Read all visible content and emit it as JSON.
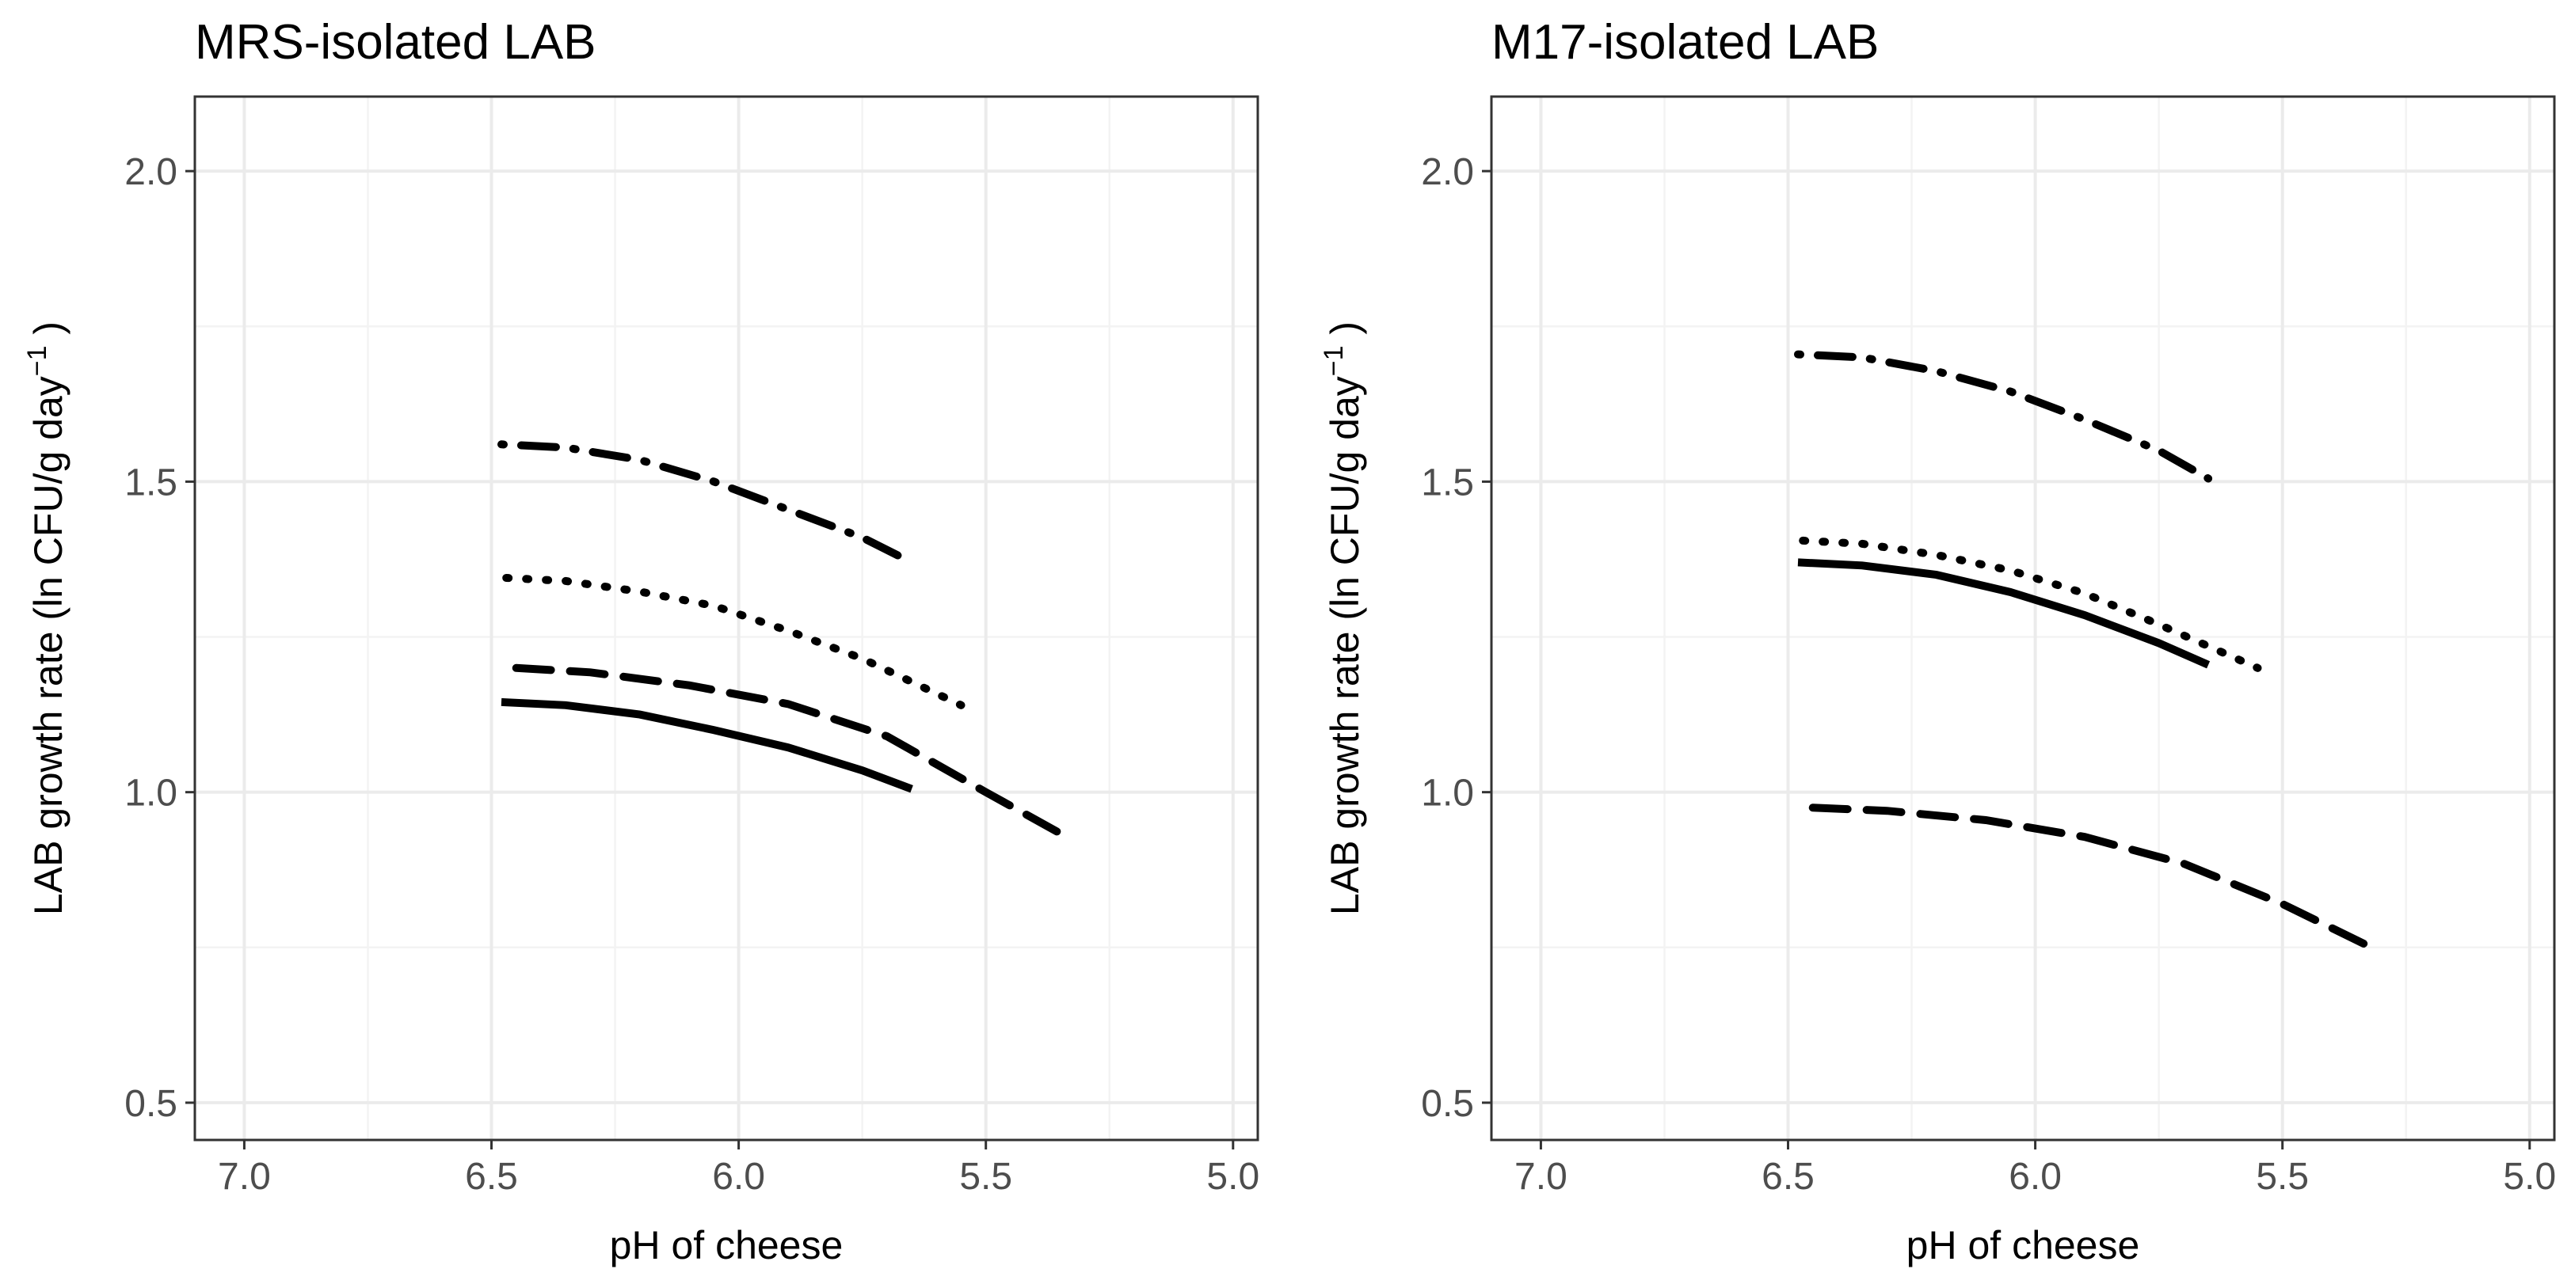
{
  "chart_data": [
    {
      "type": "line",
      "title": "MRS-isolated LAB",
      "xlabel": "pH of cheese",
      "ylabel_main": "LAB growth rate (ln CFU/g  day",
      "ylabel_sup": "−1",
      "ylabel_close": " )",
      "xlim": [
        7.1,
        4.95
      ],
      "ylim": [
        0.44,
        2.12
      ],
      "x_ticks": [
        7.0,
        6.5,
        6.0,
        5.5,
        5.0
      ],
      "x_tick_labels": [
        "7.0",
        "6.5",
        "6.0",
        "5.5",
        "5.0"
      ],
      "y_ticks": [
        0.5,
        1.0,
        1.5,
        2.0
      ],
      "y_tick_labels": [
        "0.5",
        "1.0",
        "1.5",
        "2.0"
      ],
      "grid": true,
      "series": [
        {
          "name": "solid",
          "linestyle": "solid",
          "x": [
            6.48,
            6.35,
            6.2,
            6.05,
            5.9,
            5.75,
            5.65
          ],
          "y": [
            1.145,
            1.14,
            1.125,
            1.1,
            1.072,
            1.035,
            1.005
          ]
        },
        {
          "name": "dashed",
          "linestyle": "dashed",
          "x": [
            6.45,
            6.3,
            6.1,
            5.9,
            5.7,
            5.5,
            5.33
          ],
          "y": [
            1.2,
            1.193,
            1.172,
            1.142,
            1.09,
            1.0,
            0.925
          ]
        },
        {
          "name": "dotted",
          "linestyle": "dotted",
          "x": [
            6.47,
            6.35,
            6.2,
            6.05,
            5.9,
            5.75,
            5.55
          ],
          "y": [
            1.345,
            1.34,
            1.323,
            1.3,
            1.26,
            1.215,
            1.14
          ]
        },
        {
          "name": "dotdash",
          "linestyle": "dotdash",
          "x": [
            6.48,
            6.35,
            6.2,
            6.05,
            5.9,
            5.75,
            5.65
          ],
          "y": [
            1.56,
            1.555,
            1.535,
            1.5,
            1.455,
            1.41,
            1.37
          ]
        }
      ]
    },
    {
      "type": "line",
      "title": "M17-isolated LAB",
      "xlabel": "pH of cheese",
      "ylabel_main": "LAB growth rate (ln CFU/g  day",
      "ylabel_sup": "−1",
      "ylabel_close": " )",
      "xlim": [
        7.1,
        4.95
      ],
      "ylim": [
        0.44,
        2.12
      ],
      "x_ticks": [
        7.0,
        6.5,
        6.0,
        5.5,
        5.0
      ],
      "x_tick_labels": [
        "7.0",
        "6.5",
        "6.0",
        "5.5",
        "5.0"
      ],
      "y_ticks": [
        0.5,
        1.0,
        1.5,
        2.0
      ],
      "y_tick_labels": [
        "0.5",
        "1.0",
        "1.5",
        "2.0"
      ],
      "grid": true,
      "series": [
        {
          "name": "solid",
          "linestyle": "solid",
          "x": [
            6.48,
            6.35,
            6.2,
            6.05,
            5.9,
            5.75,
            5.65
          ],
          "y": [
            1.37,
            1.365,
            1.35,
            1.322,
            1.285,
            1.24,
            1.205
          ]
        },
        {
          "name": "dashed",
          "linestyle": "dashed",
          "x": [
            6.45,
            6.3,
            6.1,
            5.9,
            5.7,
            5.5,
            5.32
          ],
          "y": [
            0.975,
            0.97,
            0.955,
            0.928,
            0.885,
            0.82,
            0.75
          ]
        },
        {
          "name": "dotted",
          "linestyle": "dotted",
          "x": [
            6.47,
            6.35,
            6.2,
            6.05,
            5.9,
            5.75,
            5.55
          ],
          "y": [
            1.405,
            1.4,
            1.382,
            1.357,
            1.32,
            1.27,
            1.2
          ]
        },
        {
          "name": "dotdash",
          "linestyle": "dotdash",
          "x": [
            6.48,
            6.35,
            6.2,
            6.05,
            5.9,
            5.75,
            5.65
          ],
          "y": [
            1.705,
            1.7,
            1.678,
            1.645,
            1.6,
            1.55,
            1.505
          ]
        }
      ]
    }
  ]
}
